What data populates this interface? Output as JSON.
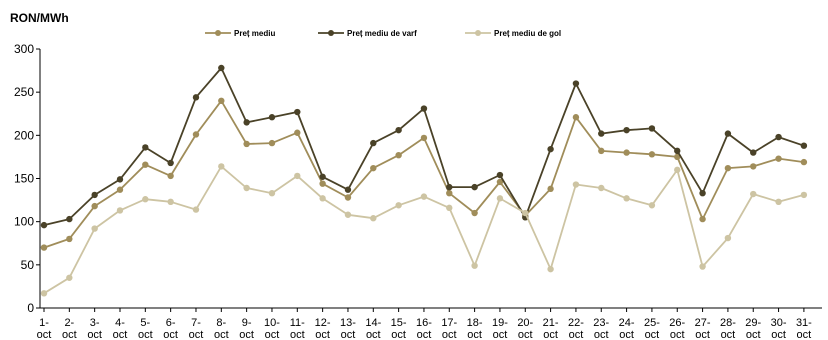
{
  "chart_data": {
    "type": "line",
    "title": "",
    "ylabel": "RON/MWh",
    "xlabel": "",
    "ylim": [
      0,
      300
    ],
    "yticks": [
      0,
      50,
      100,
      150,
      200,
      250,
      300
    ],
    "grid": false,
    "legend_position": "top-center",
    "categories": [
      "1-oct",
      "2-oct",
      "3-oct",
      "4-oct",
      "5-oct",
      "6-oct",
      "7-oct",
      "8-oct",
      "9-oct",
      "10-oct",
      "11-oct",
      "12-oct",
      "13-oct",
      "14-oct",
      "15-oct",
      "16-oct",
      "17-oct",
      "18-oct",
      "19-oct",
      "20-oct",
      "21-oct",
      "22-oct",
      "23-oct",
      "24-oct",
      "25-oct",
      "26-oct",
      "27-oct",
      "28-oct",
      "29-oct",
      "30-oct",
      "31-oct"
    ],
    "series": [
      {
        "name": "Preț mediu",
        "color": "#a08d5a",
        "values": [
          70,
          80,
          118,
          137,
          166,
          153,
          201,
          240,
          190,
          191,
          203,
          144,
          128,
          162,
          177,
          197,
          133,
          110,
          146,
          107,
          138,
          221,
          182,
          180,
          178,
          175,
          103,
          162,
          164,
          173,
          169
        ]
      },
      {
        "name": "Preț mediu de varf",
        "color": "#4a4228",
        "values": [
          96,
          103,
          131,
          149,
          186,
          168,
          244,
          278,
          215,
          221,
          227,
          152,
          137,
          191,
          206,
          231,
          140,
          140,
          154,
          105,
          184,
          260,
          202,
          206,
          208,
          182,
          133,
          202,
          180,
          198,
          188
        ]
      },
      {
        "name": "Preț mediu de gol",
        "color": "#cdc4a3",
        "values": [
          17,
          35,
          92,
          113,
          126,
          123,
          114,
          164,
          139,
          133,
          153,
          127,
          108,
          104,
          119,
          129,
          116,
          49,
          127,
          110,
          45,
          143,
          139,
          127,
          119,
          160,
          48,
          81,
          132,
          123,
          131
        ]
      }
    ]
  }
}
